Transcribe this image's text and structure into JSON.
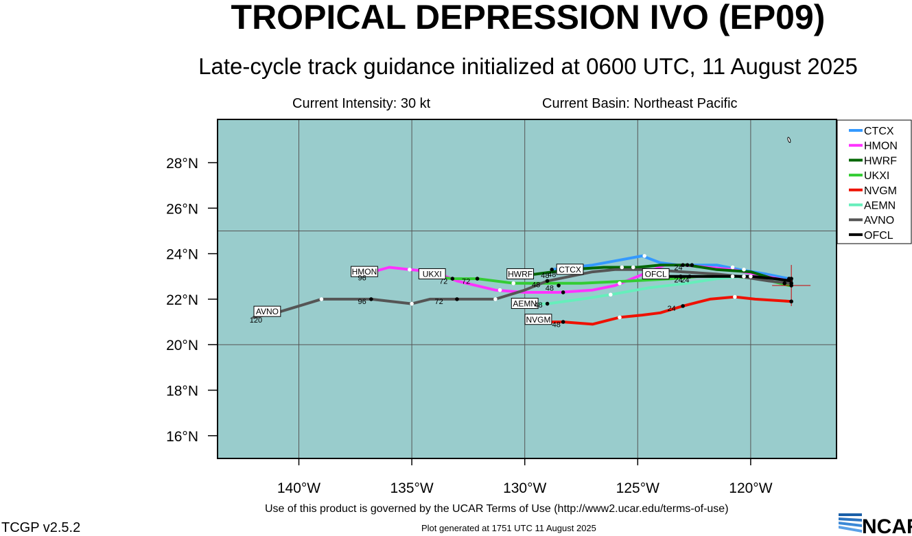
{
  "header": {
    "title": "TROPICAL DEPRESSION IVO (EP09)",
    "subtitle": "Late-cycle track guidance initialized at 0600 UTC, 11 August 2025",
    "intensity": "Current Intensity: 30 kt",
    "basin": "Current Basin: Northeast Pacific"
  },
  "footer": {
    "terms": "Use of this product is governed by the UCAR Terms of Use (http://www2.ucar.edu/terms-of-use)",
    "generated": "Plot generated at 1751 UTC   11 August 2025",
    "version": "TCGP v2.5.2",
    "logo": "NCAR"
  },
  "chart_data": {
    "type": "line",
    "xlabel": "",
    "ylabel": "",
    "xlim": [
      -143.6,
      -116.2
    ],
    "ylim": [
      15.0,
      29.9
    ],
    "x_ticks": [
      {
        "value": -140,
        "label": "140°W"
      },
      {
        "value": -135,
        "label": "135°W"
      },
      {
        "value": -130,
        "label": "130°W"
      },
      {
        "value": -125,
        "label": "125°W"
      },
      {
        "value": -120,
        "label": "120°W"
      }
    ],
    "y_ticks": [
      {
        "value": 16,
        "label": "16°N"
      },
      {
        "value": 18,
        "label": "18°N"
      },
      {
        "value": 20,
        "label": "20°N"
      },
      {
        "value": 22,
        "label": "22°N"
      },
      {
        "value": 24,
        "label": "24°N"
      },
      {
        "value": 26,
        "label": "26°N"
      },
      {
        "value": 28,
        "label": "28°N"
      }
    ],
    "grid_lon": [
      -140,
      -135,
      -130,
      -125,
      -120
    ],
    "grid_lat": [
      20,
      25
    ],
    "ocean_color": "#99cccc",
    "grid_color": "#555555",
    "legend_position": "right",
    "current_position": {
      "lon": -118.2,
      "lat": 22.6
    },
    "series": [
      {
        "name": "CTCX",
        "color": "#3399ff",
        "points": [
          [
            -118.3,
            22.9
          ],
          [
            -119.3,
            23.1
          ],
          [
            -120.5,
            23.3
          ],
          [
            -121.5,
            23.5
          ],
          [
            -122.6,
            23.5
          ],
          [
            -123.2,
            23.5
          ],
          [
            -124.0,
            23.6
          ],
          [
            -124.8,
            23.9
          ],
          [
            -127.0,
            23.5
          ],
          [
            -128.8,
            23.3
          ]
        ],
        "labels": [
          {
            "lon": -128.0,
            "lat": 23.3,
            "text": "CTCX",
            "boxed": true
          },
          {
            "lon": -129.1,
            "lat": 23.05,
            "text": "48",
            "boxed": false
          }
        ]
      },
      {
        "name": "HMON",
        "color": "#ff33ff",
        "points": [
          [
            -118.3,
            22.8
          ],
          [
            -120.8,
            23.3
          ],
          [
            -123.0,
            23.5
          ],
          [
            -123.8,
            23.5
          ],
          [
            -125.0,
            23.0
          ],
          [
            -126.0,
            22.6
          ],
          [
            -127.0,
            22.4
          ],
          [
            -128.5,
            22.3
          ],
          [
            -130.0,
            22.3
          ],
          [
            -131.3,
            22.4
          ],
          [
            -133.0,
            22.8
          ],
          [
            -134.0,
            23.2
          ],
          [
            -135.1,
            23.3
          ],
          [
            -136.0,
            23.4
          ],
          [
            -137.1,
            23.1
          ]
        ],
        "labels": [
          {
            "lon": -137.1,
            "lat": 23.2,
            "text": "HMON",
            "boxed": true
          },
          {
            "lon": -137.2,
            "lat": 22.95,
            "text": "96",
            "boxed": false
          },
          {
            "lon": -123.2,
            "lat": 23.4,
            "text": "24",
            "boxed": false
          },
          {
            "lon": -128.9,
            "lat": 22.5,
            "text": "48",
            "boxed": false
          }
        ]
      },
      {
        "name": "HWRF",
        "color": "#006600",
        "points": [
          [
            -118.3,
            22.7
          ],
          [
            -119.0,
            22.9
          ],
          [
            -120.0,
            23.2
          ],
          [
            -121.5,
            23.3
          ],
          [
            -122.8,
            23.5
          ],
          [
            -124.0,
            23.5
          ],
          [
            -125.0,
            23.4
          ],
          [
            -126.5,
            23.4
          ],
          [
            -128.0,
            23.3
          ],
          [
            -129.5,
            23.1
          ],
          [
            -130.0,
            23.05
          ]
        ],
        "labels": [
          {
            "lon": -130.2,
            "lat": 23.1,
            "text": "HWRF",
            "boxed": true
          },
          {
            "lon": -128.8,
            "lat": 23.1,
            "text": "48",
            "boxed": false
          }
        ]
      },
      {
        "name": "UKXI",
        "color": "#33cc33",
        "points": [
          [
            -118.3,
            22.6
          ],
          [
            -119.5,
            22.9
          ],
          [
            -120.8,
            23.0
          ],
          [
            -122.3,
            23.0
          ],
          [
            -123.5,
            22.9
          ],
          [
            -125.3,
            22.8
          ],
          [
            -127.5,
            22.7
          ],
          [
            -129.5,
            22.7
          ],
          [
            -130.5,
            22.7
          ],
          [
            -132.1,
            22.9
          ],
          [
            -133.2,
            22.9
          ],
          [
            -134.0,
            23.0
          ]
        ],
        "labels": [
          {
            "lon": -134.1,
            "lat": 23.1,
            "text": "UKXI",
            "boxed": true
          },
          {
            "lon": -133.6,
            "lat": 22.8,
            "text": "72",
            "boxed": false
          },
          {
            "lon": -132.6,
            "lat": 22.8,
            "text": "72",
            "boxed": false
          },
          {
            "lon": -129.5,
            "lat": 22.65,
            "text": "48",
            "boxed": false
          },
          {
            "lon": -123.2,
            "lat": 22.85,
            "text": "24",
            "boxed": false
          }
        ]
      },
      {
        "name": "NVGM",
        "color": "#ee1100",
        "points": [
          [
            -118.2,
            21.9
          ],
          [
            -119.8,
            22.0
          ],
          [
            -120.7,
            22.1
          ],
          [
            -121.8,
            22.0
          ],
          [
            -123.0,
            21.7
          ],
          [
            -124.0,
            21.4
          ],
          [
            -124.8,
            21.3
          ],
          [
            -125.8,
            21.2
          ],
          [
            -127.0,
            20.9
          ],
          [
            -128.3,
            21.0
          ],
          [
            -129.2,
            21.0
          ]
        ],
        "labels": [
          {
            "lon": -129.4,
            "lat": 21.1,
            "text": "NVGM",
            "boxed": true
          },
          {
            "lon": -128.6,
            "lat": 20.9,
            "text": "48",
            "boxed": false
          },
          {
            "lon": -123.5,
            "lat": 21.6,
            "text": "24",
            "boxed": false
          }
        ]
      },
      {
        "name": "AEMN",
        "color": "#66eebb",
        "points": [
          [
            -118.3,
            22.7
          ],
          [
            -119.5,
            22.9
          ],
          [
            -120.3,
            23.0
          ],
          [
            -121.5,
            22.9
          ],
          [
            -122.8,
            22.7
          ],
          [
            -124.5,
            22.5
          ],
          [
            -126.2,
            22.2
          ],
          [
            -127.5,
            22.0
          ],
          [
            -129.0,
            21.8
          ],
          [
            -129.9,
            21.8
          ]
        ],
        "labels": [
          {
            "lon": -130.0,
            "lat": 21.8,
            "text": "AEMN",
            "boxed": true
          },
          {
            "lon": -129.4,
            "lat": 21.75,
            "text": "48",
            "boxed": false
          },
          {
            "lon": -122.9,
            "lat": 22.85,
            "text": "24",
            "boxed": false
          }
        ]
      },
      {
        "name": "AVNO",
        "color": "#555555",
        "points": [
          [
            -118.3,
            22.7
          ],
          [
            -119.2,
            22.8
          ],
          [
            -120.5,
            23.0
          ],
          [
            -121.5,
            23.1
          ],
          [
            -123.0,
            23.2
          ],
          [
            -124.5,
            23.3
          ],
          [
            -126.0,
            23.3
          ],
          [
            -127.0,
            23.2
          ],
          [
            -128.0,
            23.0
          ],
          [
            -129.0,
            22.8
          ],
          [
            -130.0,
            22.4
          ],
          [
            -131.3,
            22.0
          ],
          [
            -133.0,
            22.0
          ],
          [
            -134.2,
            22.0
          ],
          [
            -135.0,
            21.8
          ],
          [
            -136.8,
            22.0
          ],
          [
            -139.0,
            22.0
          ],
          [
            -140.0,
            21.7
          ],
          [
            -141.0,
            21.4
          ],
          [
            -142.0,
            21.2
          ]
        ],
        "labels": [
          {
            "lon": -141.4,
            "lat": 21.45,
            "text": "AVNO",
            "boxed": true
          },
          {
            "lon": -141.9,
            "lat": 21.1,
            "text": "120",
            "boxed": false
          },
          {
            "lon": -137.2,
            "lat": 21.9,
            "text": "96",
            "boxed": false
          },
          {
            "lon": -133.8,
            "lat": 21.9,
            "text": "72",
            "boxed": false
          }
        ]
      },
      {
        "name": "OFCL",
        "color": "#000000",
        "points": [
          [
            -118.2,
            22.8
          ],
          [
            -118.9,
            22.9
          ],
          [
            -120.0,
            23.0
          ],
          [
            -121.5,
            23.0
          ],
          [
            -122.6,
            23.0
          ],
          [
            -123.3,
            23.0
          ],
          [
            -124.0,
            23.0
          ],
          [
            -124.6,
            23.0
          ]
        ],
        "labels": [
          {
            "lon": -124.2,
            "lat": 23.1,
            "text": "OFCL",
            "boxed": true
          }
        ]
      }
    ],
    "dots": [
      {
        "lon": -124.7,
        "lat": 23.9,
        "color": "#ffffff"
      },
      {
        "lon": -125.7,
        "lat": 23.4,
        "color": "#ffffff"
      },
      {
        "lon": -125.2,
        "lat": 23.4,
        "color": "#ffffff"
      },
      {
        "lon": -135.1,
        "lat": 23.3,
        "color": "#ffffff"
      },
      {
        "lon": -130.5,
        "lat": 22.7,
        "color": "#ffffff"
      },
      {
        "lon": -125.8,
        "lat": 22.7,
        "color": "#ffffff"
      },
      {
        "lon": -126.2,
        "lat": 22.2,
        "color": "#ffffff"
      },
      {
        "lon": -131.3,
        "lat": 22.0,
        "color": "#ffffff"
      },
      {
        "lon": -131.1,
        "lat": 22.4,
        "color": "#ffffff"
      },
      {
        "lon": -139.0,
        "lat": 22.0,
        "color": "#ffffff"
      },
      {
        "lon": -135.0,
        "lat": 21.8,
        "color": "#ffffff"
      },
      {
        "lon": -125.8,
        "lat": 21.2,
        "color": "#ffffff"
      },
      {
        "lon": -120.7,
        "lat": 22.1,
        "color": "#ffffff"
      },
      {
        "lon": -120.8,
        "lat": 23.4,
        "color": "#ffffff"
      },
      {
        "lon": -120.3,
        "lat": 23.3,
        "color": "#ffffff"
      },
      {
        "lon": -120.8,
        "lat": 23.0,
        "color": "#ffffff"
      },
      {
        "lon": -120.3,
        "lat": 23.0,
        "color": "#ffffff"
      },
      {
        "lon": -120.0,
        "lat": 23.0,
        "color": "#ffffff"
      },
      {
        "lon": -122.8,
        "lat": 23.5,
        "color": "#000000"
      },
      {
        "lon": -122.6,
        "lat": 23.5,
        "color": "#000000"
      },
      {
        "lon": -123.0,
        "lat": 23.5,
        "color": "#000000"
      },
      {
        "lon": -122.7,
        "lat": 23.0,
        "color": "#000000"
      },
      {
        "lon": -123.1,
        "lat": 23.0,
        "color": "#000000"
      },
      {
        "lon": -123.0,
        "lat": 21.7,
        "color": "#000000"
      },
      {
        "lon": -128.5,
        "lat": 22.6,
        "color": "#000000"
      },
      {
        "lon": -128.3,
        "lat": 22.3,
        "color": "#000000"
      },
      {
        "lon": -129.0,
        "lat": 22.8,
        "color": "#000000"
      },
      {
        "lon": -129.0,
        "lat": 21.8,
        "color": "#000000"
      },
      {
        "lon": -128.3,
        "lat": 21.0,
        "color": "#000000"
      },
      {
        "lon": -128.8,
        "lat": 23.3,
        "color": "#000000"
      },
      {
        "lon": -132.1,
        "lat": 22.9,
        "color": "#000000"
      },
      {
        "lon": -133.2,
        "lat": 22.9,
        "color": "#000000"
      },
      {
        "lon": -133.0,
        "lat": 22.0,
        "color": "#000000"
      },
      {
        "lon": -136.8,
        "lat": 22.0,
        "color": "#000000"
      },
      {
        "lon": -118.3,
        "lat": 22.9,
        "color": "#000000"
      },
      {
        "lon": -118.2,
        "lat": 22.9,
        "color": "#000000"
      },
      {
        "lon": -118.2,
        "lat": 22.7,
        "color": "#000000"
      },
      {
        "lon": -118.2,
        "lat": 22.6,
        "color": "#000000"
      },
      {
        "lon": -118.2,
        "lat": 21.9,
        "color": "#000000"
      },
      {
        "lon": -118.5,
        "lat": 22.7,
        "color": "#000000"
      }
    ],
    "island": {
      "lon": -118.3,
      "lat": 29.0
    }
  }
}
